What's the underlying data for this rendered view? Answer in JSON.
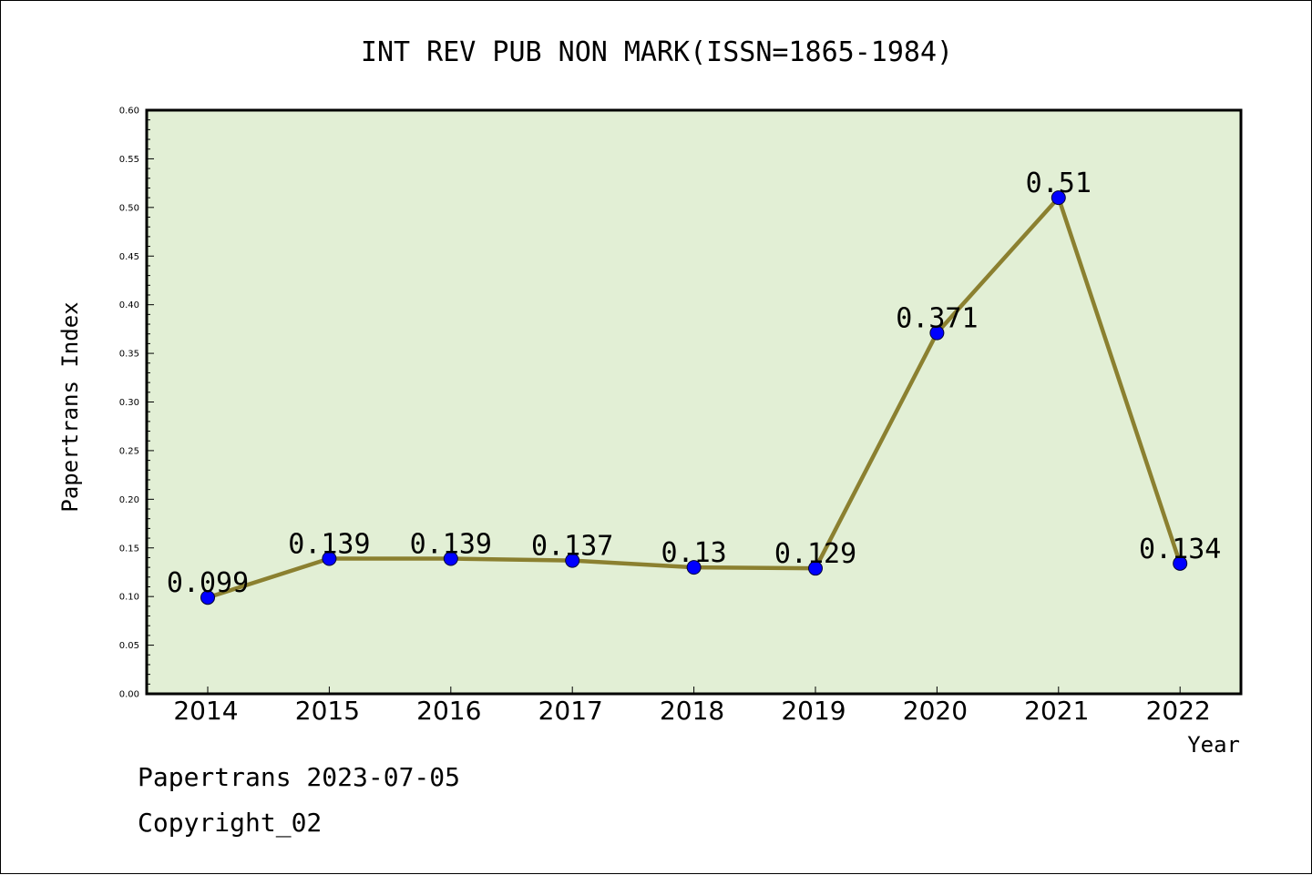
{
  "chart_data": {
    "type": "line",
    "title": "INT REV PUB NON MARK(ISSN=1865-1984)",
    "xlabel": "Year",
    "ylabel": "Papertrans Index",
    "categories": [
      "2014",
      "2015",
      "2016",
      "2017",
      "2018",
      "2019",
      "2020",
      "2021",
      "2022"
    ],
    "values": [
      0.099,
      0.139,
      0.139,
      0.137,
      0.13,
      0.129,
      0.371,
      0.51,
      0.134
    ],
    "data_labels": [
      "0.099",
      "0.139",
      "0.139",
      "0.137",
      "0.13",
      "0.129",
      "0.371",
      "0.51",
      "0.134"
    ],
    "yticks": [
      "0.00",
      "0.05",
      "0.10",
      "0.15",
      "0.20",
      "0.25",
      "0.30",
      "0.35",
      "0.40",
      "0.45",
      "0.50",
      "0.55",
      "0.60"
    ],
    "ylim": [
      0,
      0.6
    ],
    "grid": false,
    "colors": {
      "line": "#8b8030",
      "marker": "#0000ff",
      "plot_background": "#e2efd5"
    }
  },
  "footer": {
    "line1": "Papertrans 2023-07-05",
    "line2": "Copyright_02"
  }
}
